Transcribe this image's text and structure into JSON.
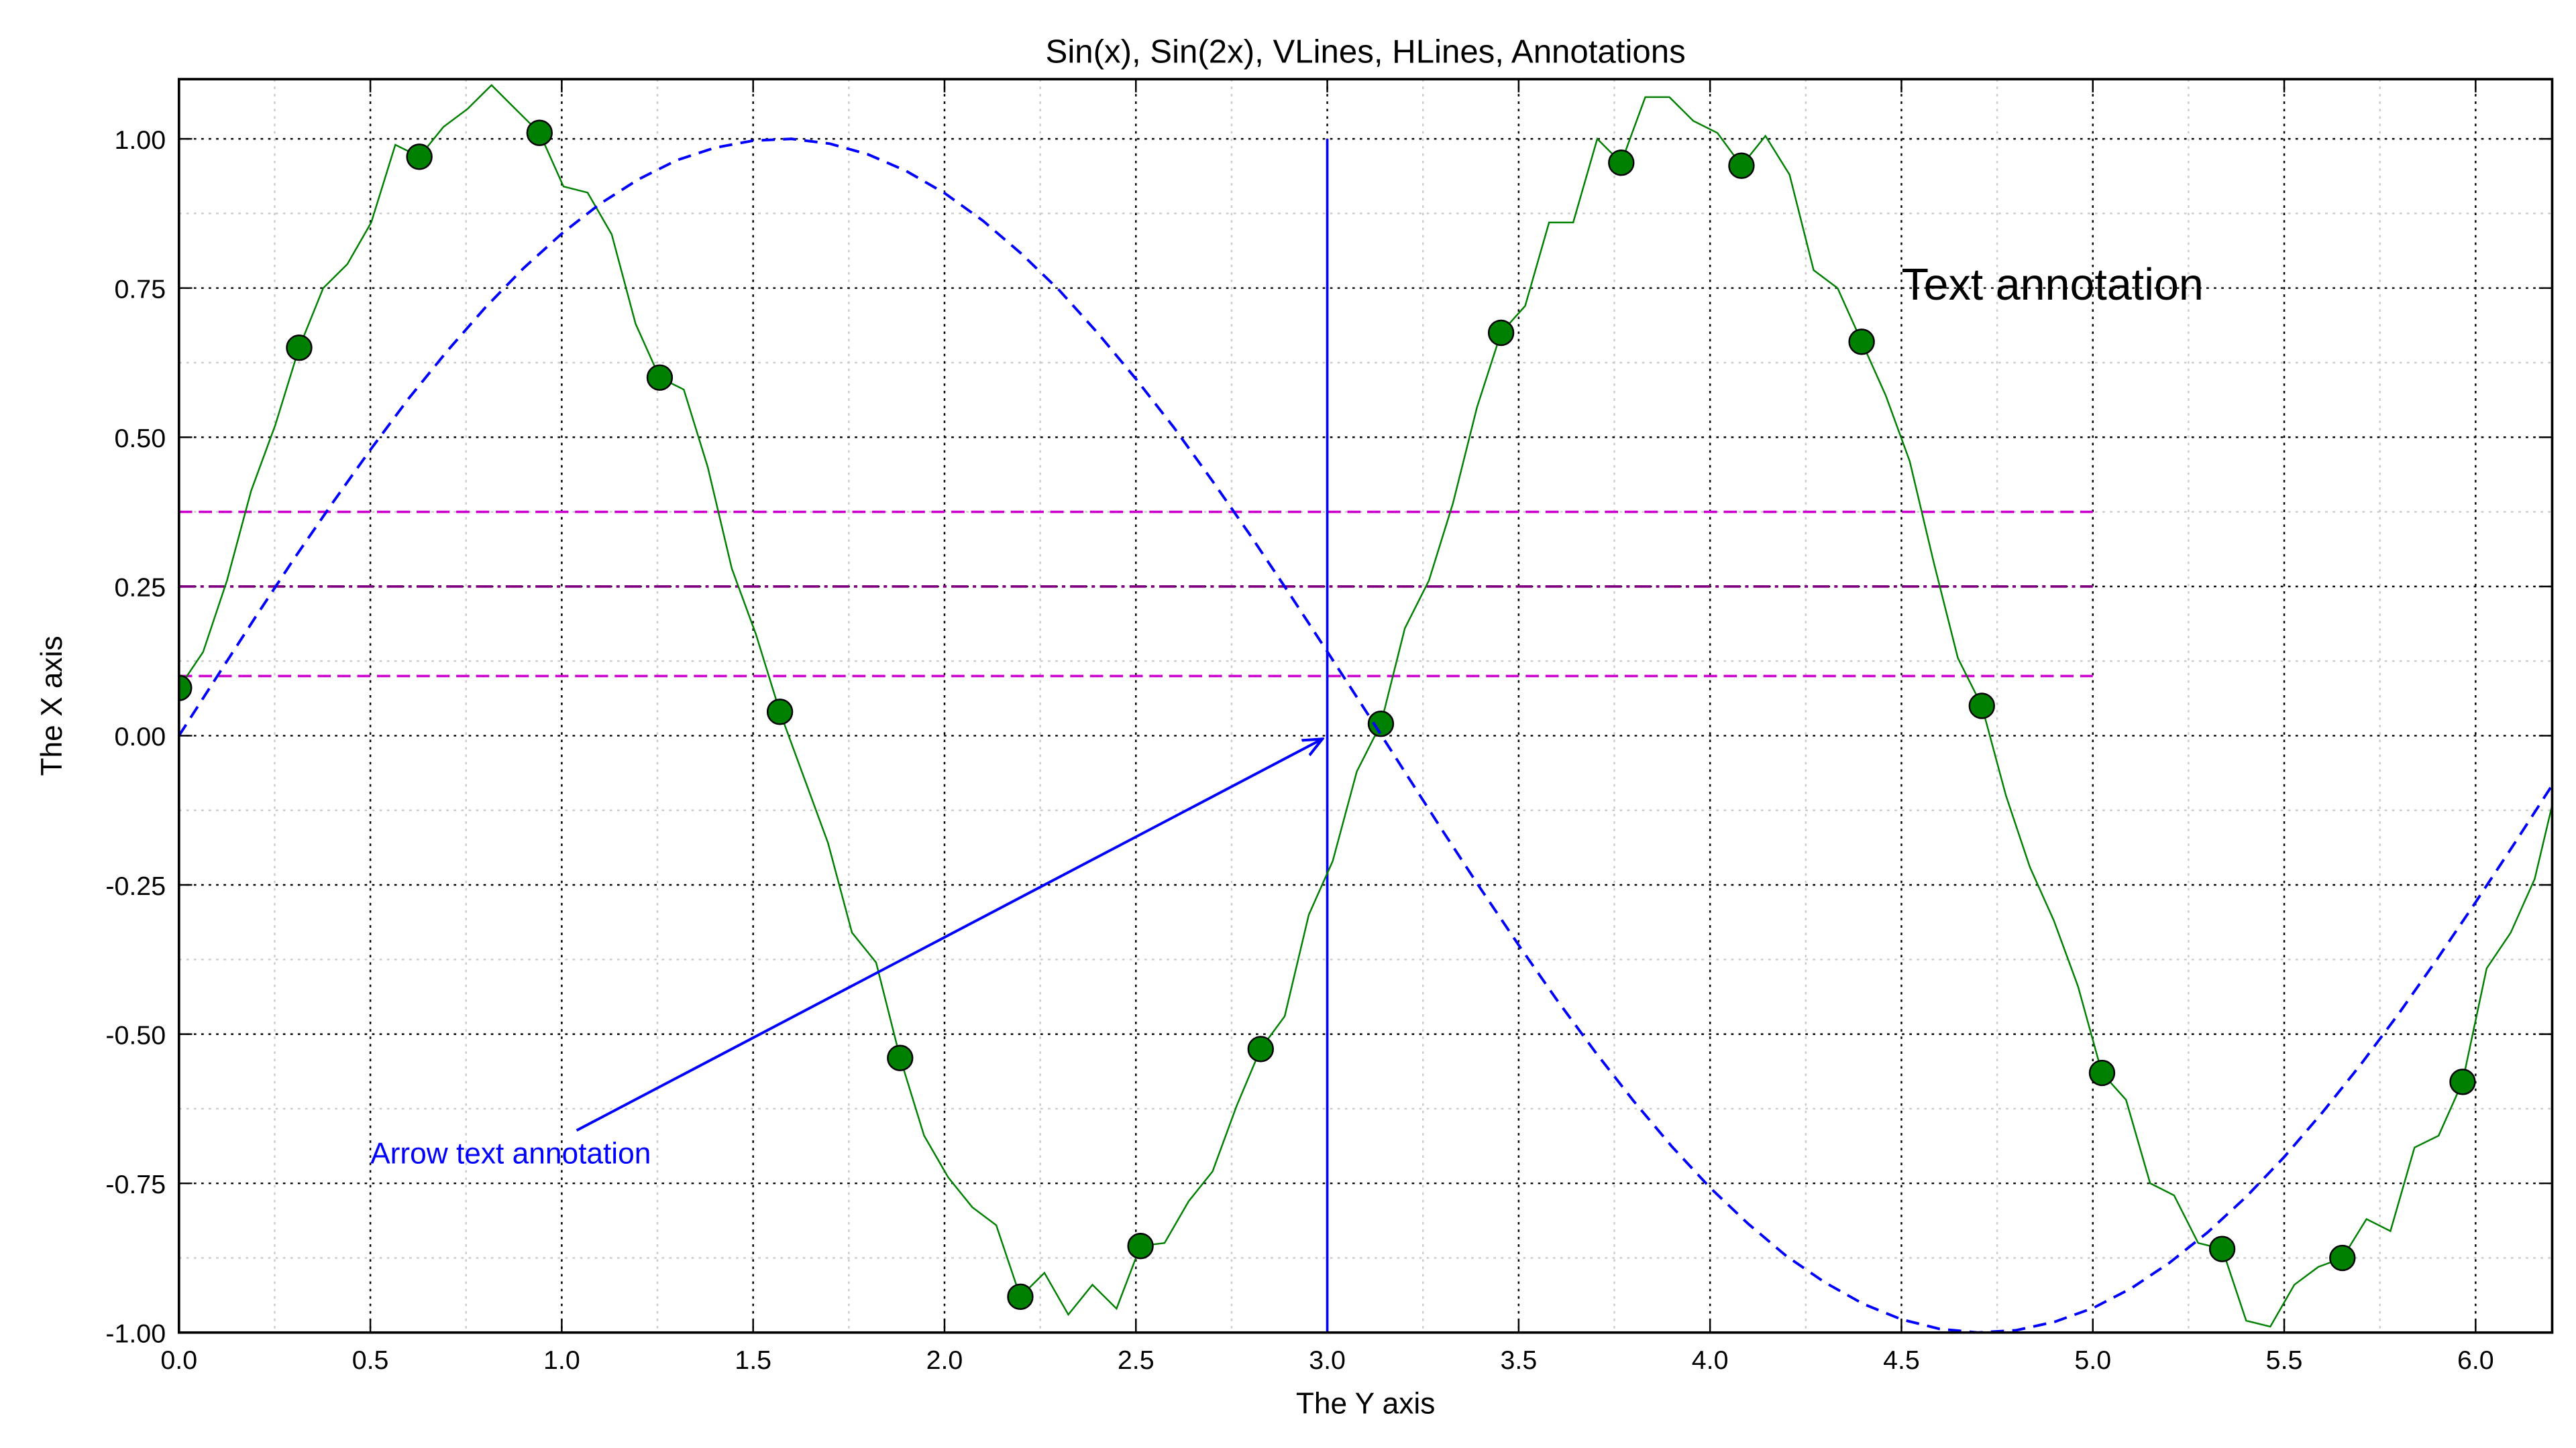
{
  "chart_data": {
    "type": "line",
    "title": "Sin(x), Sin(2x), VLines, HLines, Annotations",
    "xlabel": "The Y axis",
    "ylabel": "The X axis",
    "xlim": [
      0,
      6.2
    ],
    "ylim": [
      -1.0,
      1.1
    ],
    "grid": {
      "major": true,
      "minor": true
    },
    "xticks": [
      "0.0",
      "0.5",
      "1.0",
      "1.5",
      "2.0",
      "2.5",
      "3.0",
      "3.5",
      "4.0",
      "4.5",
      "5.0",
      "5.5",
      "6.0"
    ],
    "yticks": [
      "-1.00",
      "-0.75",
      "-0.50",
      "-0.25",
      "0.00",
      "0.25",
      "0.50",
      "0.75",
      "1.00"
    ],
    "series": [
      {
        "style": "solid-line",
        "color": "#008000",
        "x_step": 0.0628,
        "y": [
          0.08,
          0.14,
          0.26,
          0.41,
          0.52,
          0.65,
          0.75,
          0.79,
          0.86,
          0.99,
          0.97,
          1.02,
          1.05,
          1.09,
          1.05,
          1.01,
          0.92,
          0.91,
          0.84,
          0.69,
          0.6,
          0.58,
          0.45,
          0.28,
          0.17,
          0.04,
          -0.07,
          -0.18,
          -0.33,
          -0.38,
          -0.54,
          -0.67,
          -0.74,
          -0.79,
          -0.82,
          -0.94,
          -0.9,
          -0.97,
          -0.92,
          -0.96,
          -0.855,
          -0.85,
          -0.78,
          -0.73,
          -0.62,
          -0.525,
          -0.47,
          -0.3,
          -0.21,
          -0.06,
          0.02,
          0.18,
          0.26,
          0.39,
          0.55,
          0.675,
          0.72,
          0.86,
          0.86,
          1.0,
          0.96,
          1.07,
          1.07,
          1.03,
          1.01,
          0.955,
          1.005,
          0.94,
          0.78,
          0.75,
          0.66,
          0.57,
          0.46,
          0.29,
          0.13,
          0.05,
          -0.1,
          -0.22,
          -0.31,
          -0.42,
          -0.565,
          -0.61,
          -0.75,
          -0.77,
          -0.85,
          -0.86,
          -0.98,
          -0.99,
          -0.92,
          -0.89,
          -0.875,
          -0.81,
          -0.83,
          -0.69,
          -0.67,
          -0.58,
          -0.39,
          -0.33,
          -0.24,
          -0.07
        ],
        "marker_every": 5,
        "marker_color": "#008000"
      },
      {
        "style": "dashed-line",
        "color": "#0000ff",
        "x_step": 0.1,
        "y": [
          0,
          0.0998,
          0.199,
          0.296,
          0.389,
          0.479,
          0.565,
          0.644,
          0.717,
          0.783,
          0.841,
          0.891,
          0.932,
          0.964,
          0.985,
          0.997,
          1.0,
          0.992,
          0.974,
          0.946,
          0.909,
          0.863,
          0.808,
          0.746,
          0.675,
          0.598,
          0.516,
          0.427,
          0.335,
          0.239,
          0.141,
          0.042,
          -0.058,
          -0.158,
          -0.256,
          -0.351,
          -0.443,
          -0.53,
          -0.612,
          -0.688,
          -0.757,
          -0.818,
          -0.872,
          -0.916,
          -0.952,
          -0.978,
          -0.994,
          -1.0,
          -0.996,
          -0.982,
          -0.959,
          -0.926,
          -0.883,
          -0.832,
          -0.773,
          -0.706,
          -0.631,
          -0.551,
          -0.465,
          -0.374,
          -0.279,
          -0.182,
          -0.083
        ]
      }
    ],
    "hlines": [
      {
        "y": 0.1,
        "xmin": 0,
        "xmax": 5.0,
        "color": "#cc00cc",
        "style": "dashed"
      },
      {
        "y": 0.25,
        "xmin": 0,
        "xmax": 5.0,
        "color": "#800080",
        "style": "dashdot"
      },
      {
        "y": 0.375,
        "xmin": 0,
        "xmax": 5.0,
        "color": "#cc00cc",
        "style": "dashed"
      }
    ],
    "vlines": [
      {
        "x": 3.0,
        "ymin": -1.0,
        "ymax": 1.0,
        "color": "#0000ff"
      }
    ],
    "annotations": [
      {
        "text": "Text annotation",
        "x": 4.5,
        "y": 0.75,
        "color": "#000000"
      },
      {
        "text": "Arrow text annotation",
        "x": 0.5,
        "y": -0.7,
        "arrow_to": [
          3.0,
          0.0
        ],
        "color": "#0000ff"
      }
    ]
  }
}
